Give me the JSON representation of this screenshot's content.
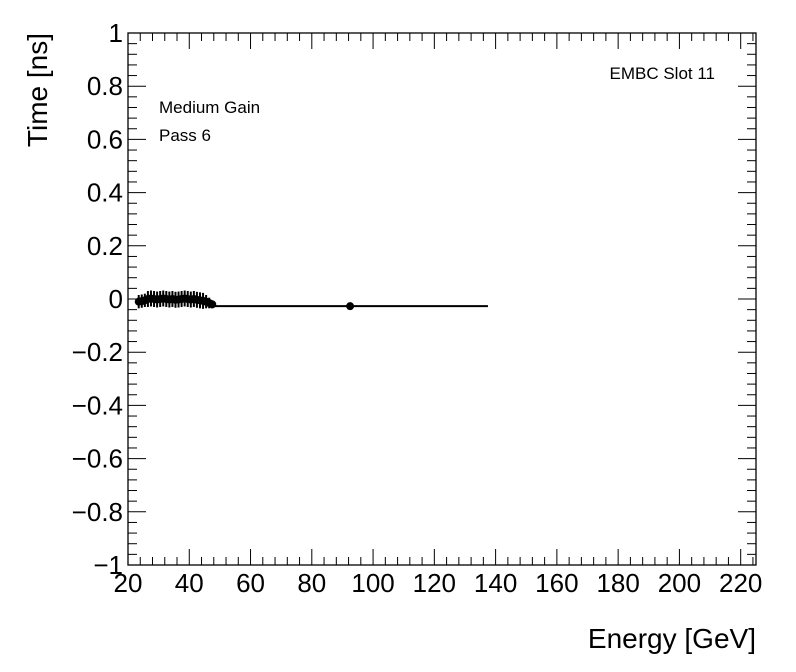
{
  "chart_data": {
    "type": "scatter",
    "title": "",
    "xlabel": "Energy [GeV]",
    "ylabel": "Time [ns]",
    "xlim": [
      20,
      225
    ],
    "ylim": [
      -1,
      1
    ],
    "x_ticks": [
      20,
      40,
      60,
      80,
      100,
      120,
      140,
      160,
      180,
      200,
      220
    ],
    "y_ticks": [
      -1,
      -0.8,
      -0.6,
      -0.4,
      -0.2,
      0,
      0.2,
      0.4,
      0.6,
      0.8,
      1
    ],
    "x_tick_labels": [
      "20",
      "40",
      "60",
      "80",
      "100",
      "120",
      "140",
      "160",
      "180",
      "200",
      "220"
    ],
    "y_tick_labels": [
      "−1",
      "−0.8",
      "−0.6",
      "−0.4",
      "−0.2",
      "0",
      "0.2",
      "0.4",
      "0.6",
      "0.8",
      "1"
    ],
    "grid": false,
    "annotations": {
      "gain": "Medium Gain",
      "pass": "Pass 6",
      "slot": "EMBC Slot 11"
    },
    "points": [
      {
        "x": 23.5,
        "y": -0.01,
        "xerr": 0.5,
        "yerr": 0.025
      },
      {
        "x": 24.5,
        "y": -0.008,
        "xerr": 0.5,
        "yerr": 0.025
      },
      {
        "x": 25.5,
        "y": -0.005,
        "xerr": 0.5,
        "yerr": 0.025
      },
      {
        "x": 26.5,
        "y": 0.0,
        "xerr": 0.5,
        "yerr": 0.03
      },
      {
        "x": 27.5,
        "y": 0.002,
        "xerr": 0.5,
        "yerr": 0.03
      },
      {
        "x": 28.5,
        "y": 0.0,
        "xerr": 0.5,
        "yerr": 0.03
      },
      {
        "x": 29.5,
        "y": -0.002,
        "xerr": 0.5,
        "yerr": 0.03
      },
      {
        "x": 30.5,
        "y": 0.0,
        "xerr": 0.5,
        "yerr": 0.03
      },
      {
        "x": 31.5,
        "y": 0.002,
        "xerr": 0.5,
        "yerr": 0.03
      },
      {
        "x": 32.5,
        "y": 0.0,
        "xerr": 0.5,
        "yerr": 0.03
      },
      {
        "x": 33.5,
        "y": -0.002,
        "xerr": 0.5,
        "yerr": 0.03
      },
      {
        "x": 34.5,
        "y": 0.0,
        "xerr": 0.5,
        "yerr": 0.03
      },
      {
        "x": 35.5,
        "y": -0.003,
        "xerr": 0.5,
        "yerr": 0.03
      },
      {
        "x": 36.5,
        "y": -0.002,
        "xerr": 0.5,
        "yerr": 0.03
      },
      {
        "x": 37.5,
        "y": 0.0,
        "xerr": 0.5,
        "yerr": 0.03
      },
      {
        "x": 38.5,
        "y": 0.002,
        "xerr": 0.5,
        "yerr": 0.03
      },
      {
        "x": 39.5,
        "y": 0.0,
        "xerr": 0.5,
        "yerr": 0.03
      },
      {
        "x": 40.5,
        "y": -0.002,
        "xerr": 0.5,
        "yerr": 0.03
      },
      {
        "x": 41.5,
        "y": 0.0,
        "xerr": 0.5,
        "yerr": 0.03
      },
      {
        "x": 42.5,
        "y": -0.003,
        "xerr": 0.5,
        "yerr": 0.03
      },
      {
        "x": 43.5,
        "y": -0.005,
        "xerr": 0.5,
        "yerr": 0.03
      },
      {
        "x": 44.5,
        "y": -0.007,
        "xerr": 0.5,
        "yerr": 0.03
      },
      {
        "x": 45.5,
        "y": -0.01,
        "xerr": 0.5,
        "yerr": 0.025
      },
      {
        "x": 46.5,
        "y": -0.015,
        "xerr": 0.5,
        "yerr": 0.02
      },
      {
        "x": 47.5,
        "y": -0.02,
        "xerr": 0.5,
        "yerr": 0.015
      },
      {
        "x": 92.5,
        "y": -0.027,
        "xerr": 45.0,
        "yerr": 0.005
      }
    ]
  }
}
